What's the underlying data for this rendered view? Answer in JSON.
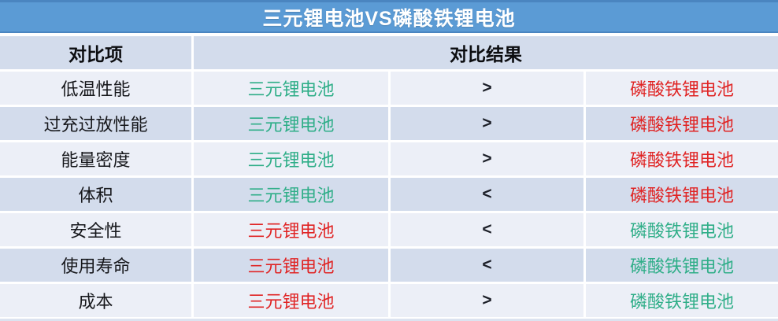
{
  "chart_data": {
    "type": "table",
    "title": "三元锂电池VS磷酸铁锂电池",
    "header": {
      "item_col": "对比项",
      "result_col": "对比结果"
    },
    "rows": [
      {
        "item": "低温性能",
        "left": "三元锂电池",
        "left_color": "green",
        "op": ">",
        "right": "磷酸铁锂电池",
        "right_color": "red"
      },
      {
        "item": "过充过放性能",
        "left": "三元锂电池",
        "left_color": "green",
        "op": ">",
        "right": "磷酸铁锂电池",
        "right_color": "red"
      },
      {
        "item": "能量密度",
        "left": "三元锂电池",
        "left_color": "green",
        "op": ">",
        "right": "磷酸铁锂电池",
        "right_color": "red"
      },
      {
        "item": "体积",
        "left": "三元锂电池",
        "left_color": "green",
        "op": "<",
        "right": "磷酸铁锂电池",
        "right_color": "red"
      },
      {
        "item": "安全性",
        "left": "三元锂电池",
        "left_color": "red",
        "op": "<",
        "right": "磷酸铁锂电池",
        "right_color": "green"
      },
      {
        "item": "使用寿命",
        "left": "三元锂电池",
        "left_color": "red",
        "op": "<",
        "right": "磷酸铁锂电池",
        "right_color": "green"
      },
      {
        "item": "成本",
        "left": "三元锂电池",
        "left_color": "red",
        "op": ">",
        "right": "磷酸铁锂电池",
        "right_color": "green"
      }
    ]
  },
  "colors": {
    "header_blue": "#5B9BD5",
    "header_blue_edge": "#4A85C0",
    "band_dark": "#D3DCEC",
    "band_light": "#ECEFF7",
    "advantage_green": "#2FAE88",
    "disadvantage_red": "#E02424",
    "text_dark": "#17181C",
    "bottom_strip": "#DCE3F0"
  }
}
